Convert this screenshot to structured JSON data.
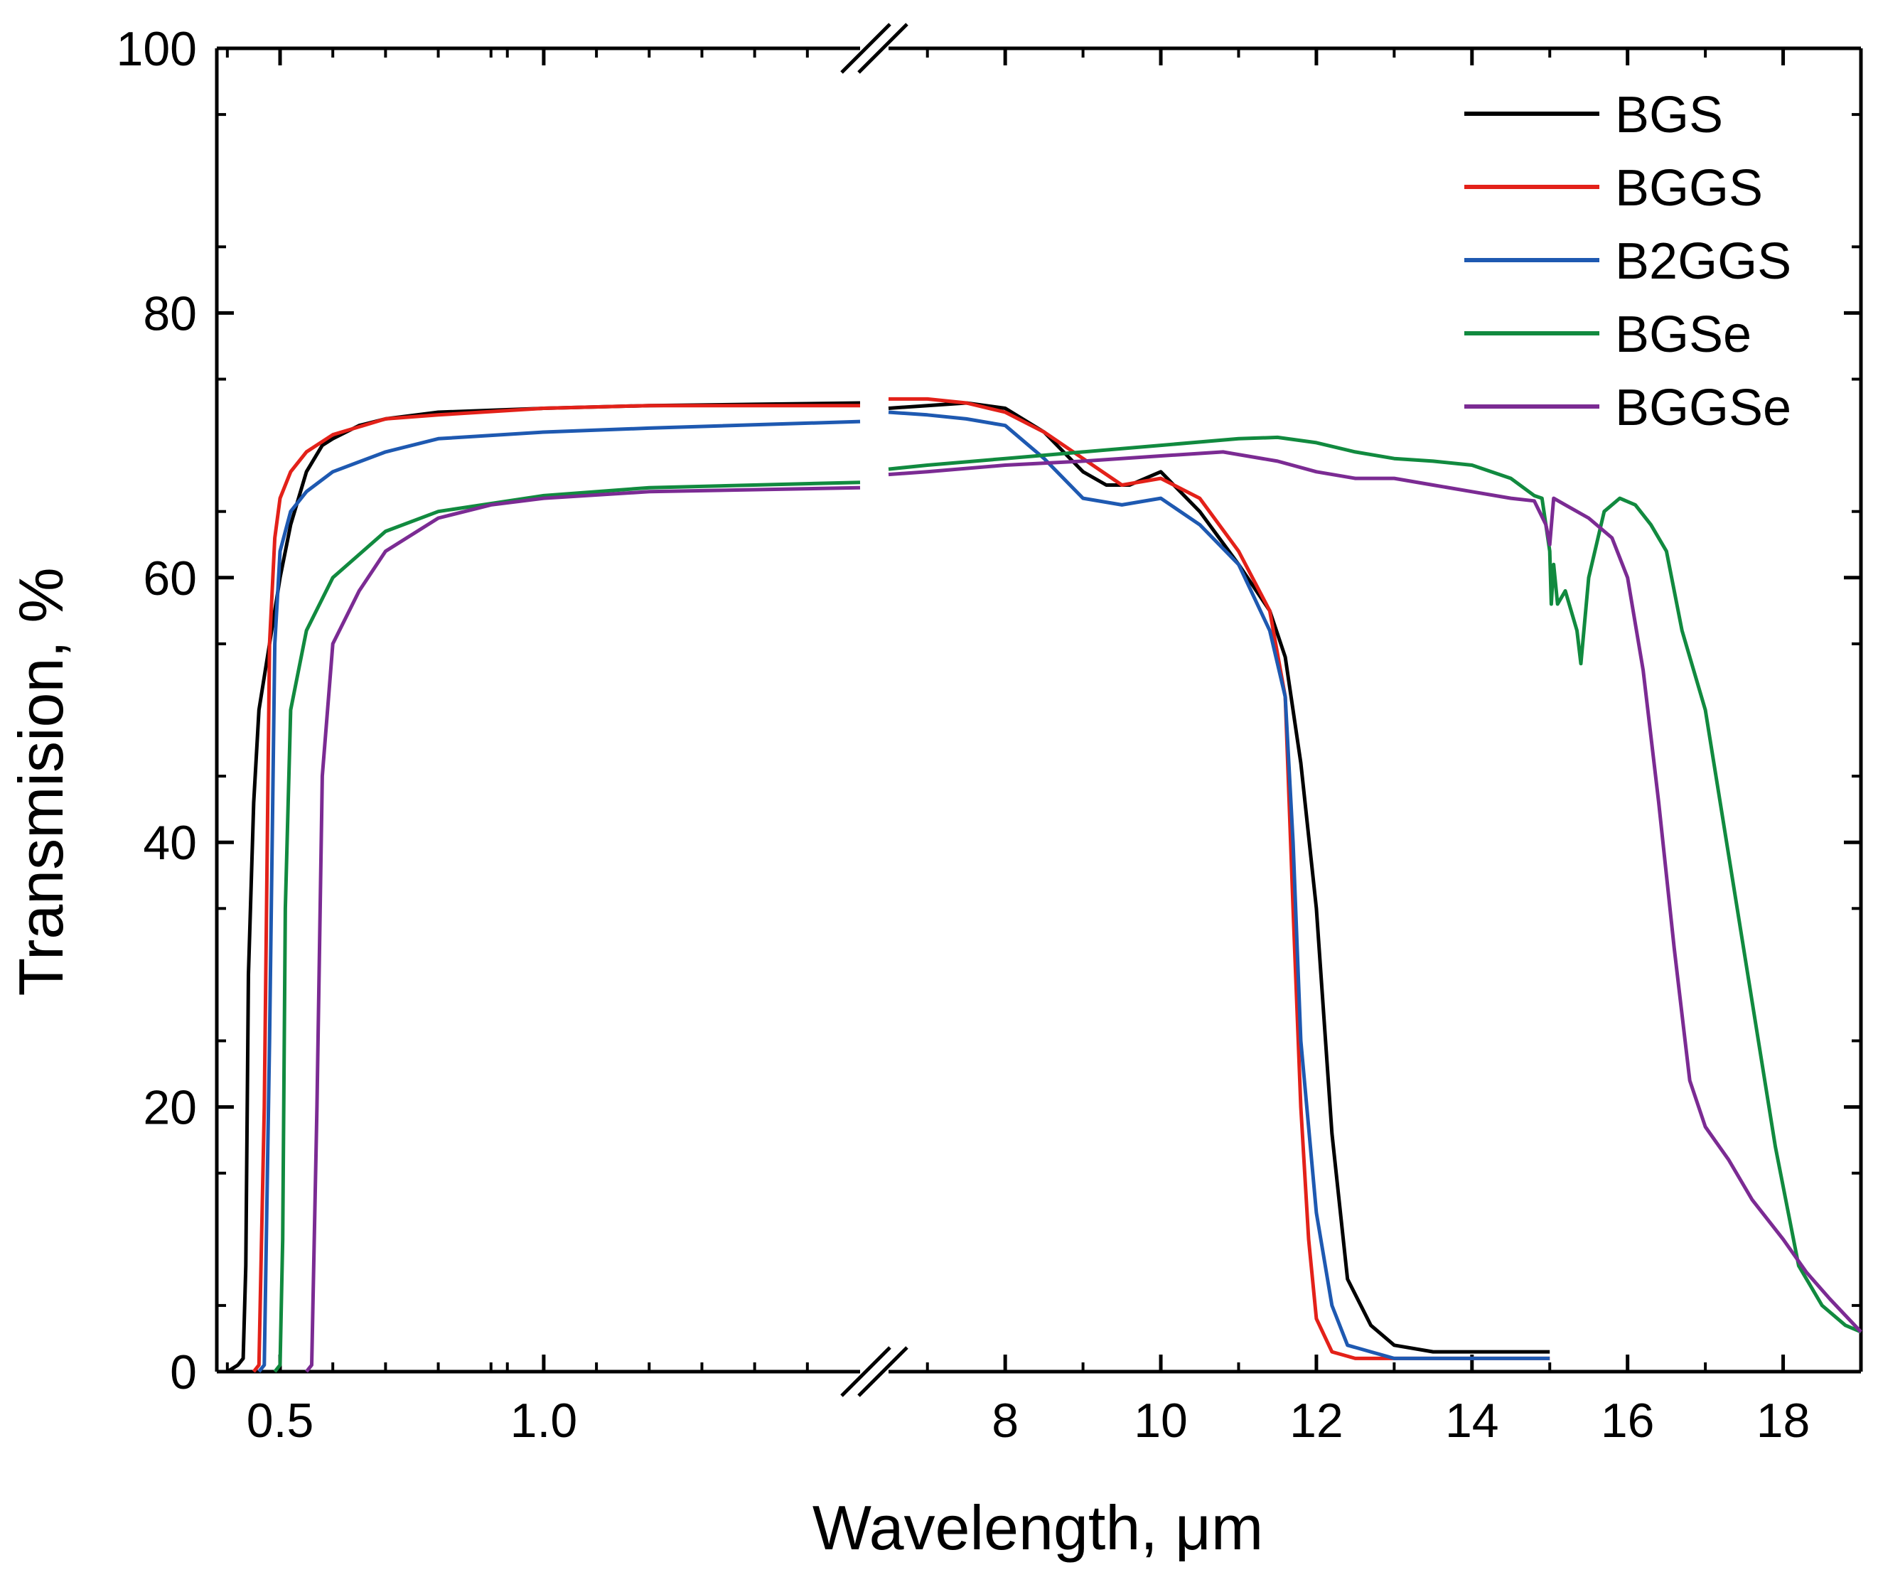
{
  "chart_data": {
    "type": "line",
    "xlabel": "Wavelength, μm",
    "ylabel": "Transmision, %",
    "ylim": [
      0,
      100
    ],
    "yticks": [
      0,
      20,
      40,
      60,
      80,
      100
    ],
    "x_axis_break": true,
    "x_segments": [
      {
        "range": [
          0.38,
          1.6
        ],
        "ticks": [
          0.5,
          1.0
        ],
        "tick_labels": [
          "0.5",
          "1.0"
        ]
      },
      {
        "range": [
          6.5,
          19.0
        ],
        "ticks": [
          8,
          10,
          12,
          14,
          16,
          18
        ],
        "tick_labels": [
          "8",
          "10",
          "12",
          "14",
          "16",
          "18"
        ]
      }
    ],
    "legend_position": "top-right",
    "series": [
      {
        "name": "BGS",
        "color": "#000000",
        "points": [
          [
            0.4,
            0
          ],
          [
            0.42,
            0.5
          ],
          [
            0.43,
            1
          ],
          [
            0.435,
            8
          ],
          [
            0.44,
            30
          ],
          [
            0.45,
            43
          ],
          [
            0.46,
            50
          ],
          [
            0.48,
            55
          ],
          [
            0.5,
            60
          ],
          [
            0.52,
            64
          ],
          [
            0.55,
            68
          ],
          [
            0.58,
            70
          ],
          [
            0.6,
            70.5
          ],
          [
            0.65,
            71.5
          ],
          [
            0.7,
            72
          ],
          [
            0.8,
            72.5
          ],
          [
            1.0,
            72.8
          ],
          [
            1.2,
            73
          ],
          [
            1.4,
            73.1
          ],
          [
            1.6,
            73.2
          ],
          [
            6.5,
            72.8
          ],
          [
            7.0,
            73
          ],
          [
            7.5,
            73.2
          ],
          [
            8.0,
            72.8
          ],
          [
            8.5,
            71
          ],
          [
            9.0,
            68
          ],
          [
            9.3,
            67
          ],
          [
            9.6,
            67
          ],
          [
            10.0,
            68
          ],
          [
            10.5,
            65
          ],
          [
            11.0,
            61
          ],
          [
            11.4,
            57.5
          ],
          [
            11.6,
            54
          ],
          [
            11.8,
            46
          ],
          [
            12.0,
            35
          ],
          [
            12.2,
            18
          ],
          [
            12.4,
            7
          ],
          [
            12.7,
            3.5
          ],
          [
            13.0,
            2
          ],
          [
            13.5,
            1.5
          ],
          [
            14.0,
            1.5
          ],
          [
            15.0,
            1.5
          ]
        ]
      },
      {
        "name": "BGGS",
        "color": "#e32119",
        "points": [
          [
            0.45,
            0
          ],
          [
            0.46,
            0.5
          ],
          [
            0.47,
            20
          ],
          [
            0.48,
            55
          ],
          [
            0.49,
            63
          ],
          [
            0.5,
            66
          ],
          [
            0.52,
            68
          ],
          [
            0.55,
            69.5
          ],
          [
            0.6,
            70.8
          ],
          [
            0.7,
            72
          ],
          [
            0.8,
            72.3
          ],
          [
            1.0,
            72.8
          ],
          [
            1.2,
            73
          ],
          [
            1.6,
            73
          ],
          [
            6.5,
            73.5
          ],
          [
            7.0,
            73.5
          ],
          [
            7.5,
            73.2
          ],
          [
            8.0,
            72.5
          ],
          [
            8.5,
            71
          ],
          [
            9.0,
            69
          ],
          [
            9.5,
            67
          ],
          [
            10.0,
            67.5
          ],
          [
            10.5,
            66
          ],
          [
            11.0,
            62
          ],
          [
            11.4,
            57.5
          ],
          [
            11.6,
            51
          ],
          [
            11.7,
            35
          ],
          [
            11.8,
            20
          ],
          [
            11.9,
            10
          ],
          [
            12.0,
            4
          ],
          [
            12.2,
            1.5
          ],
          [
            12.5,
            1
          ],
          [
            13.0,
            1
          ],
          [
            14.0,
            1
          ],
          [
            15.0,
            1
          ]
        ]
      },
      {
        "name": "B2GGS",
        "color": "#1e59b1",
        "points": [
          [
            0.46,
            0
          ],
          [
            0.47,
            0.5
          ],
          [
            0.48,
            25
          ],
          [
            0.49,
            55
          ],
          [
            0.5,
            62
          ],
          [
            0.52,
            65
          ],
          [
            0.55,
            66.5
          ],
          [
            0.6,
            68
          ],
          [
            0.7,
            69.5
          ],
          [
            0.8,
            70.5
          ],
          [
            1.0,
            71
          ],
          [
            1.2,
            71.3
          ],
          [
            1.6,
            71.8
          ],
          [
            6.5,
            72.5
          ],
          [
            7.0,
            72.3
          ],
          [
            7.5,
            72
          ],
          [
            8.0,
            71.5
          ],
          [
            8.5,
            69
          ],
          [
            9.0,
            66
          ],
          [
            9.5,
            65.5
          ],
          [
            10.0,
            66
          ],
          [
            10.5,
            64
          ],
          [
            11.0,
            61
          ],
          [
            11.4,
            56
          ],
          [
            11.6,
            51
          ],
          [
            11.7,
            40
          ],
          [
            11.8,
            25
          ],
          [
            12.0,
            12
          ],
          [
            12.2,
            5
          ],
          [
            12.4,
            2
          ],
          [
            12.7,
            1.5
          ],
          [
            13.0,
            1
          ],
          [
            15.0,
            1
          ]
        ]
      },
      {
        "name": "BGSe",
        "color": "#118a3f",
        "points": [
          [
            0.49,
            0
          ],
          [
            0.5,
            0.5
          ],
          [
            0.505,
            10
          ],
          [
            0.51,
            35
          ],
          [
            0.52,
            50
          ],
          [
            0.55,
            56
          ],
          [
            0.6,
            60
          ],
          [
            0.7,
            63.5
          ],
          [
            0.8,
            65
          ],
          [
            1.0,
            66.2
          ],
          [
            1.2,
            66.8
          ],
          [
            1.6,
            67.2
          ],
          [
            6.5,
            68.2
          ],
          [
            7.0,
            68.5
          ],
          [
            8.0,
            69
          ],
          [
            9.0,
            69.5
          ],
          [
            10.0,
            70
          ],
          [
            11.0,
            70.5
          ],
          [
            11.5,
            70.6
          ],
          [
            12.0,
            70.2
          ],
          [
            12.5,
            69.5
          ],
          [
            13.0,
            69
          ],
          [
            13.5,
            68.8
          ],
          [
            14.0,
            68.5
          ],
          [
            14.5,
            67.5
          ],
          [
            14.8,
            66.2
          ],
          [
            14.9,
            66
          ],
          [
            15.0,
            62
          ],
          [
            15.02,
            58
          ],
          [
            15.05,
            61
          ],
          [
            15.1,
            58
          ],
          [
            15.2,
            59
          ],
          [
            15.35,
            56
          ],
          [
            15.4,
            53.5
          ],
          [
            15.5,
            60
          ],
          [
            15.7,
            65
          ],
          [
            15.9,
            66
          ],
          [
            16.1,
            65.5
          ],
          [
            16.3,
            64
          ],
          [
            16.5,
            62
          ],
          [
            16.7,
            56
          ],
          [
            17.0,
            50
          ],
          [
            17.3,
            39
          ],
          [
            17.6,
            28
          ],
          [
            17.9,
            17
          ],
          [
            18.2,
            8
          ],
          [
            18.5,
            5
          ],
          [
            18.8,
            3.5
          ],
          [
            19.0,
            3
          ]
        ]
      },
      {
        "name": "BGGSe",
        "color": "#7b2b93",
        "points": [
          [
            0.55,
            0
          ],
          [
            0.56,
            0.5
          ],
          [
            0.57,
            20
          ],
          [
            0.58,
            45
          ],
          [
            0.6,
            55
          ],
          [
            0.65,
            59
          ],
          [
            0.7,
            62
          ],
          [
            0.8,
            64.5
          ],
          [
            0.9,
            65.5
          ],
          [
            1.0,
            66
          ],
          [
            1.2,
            66.5
          ],
          [
            1.6,
            66.8
          ],
          [
            6.5,
            67.8
          ],
          [
            7.0,
            68
          ],
          [
            8.0,
            68.5
          ],
          [
            9.0,
            68.8
          ],
          [
            10.0,
            69.2
          ],
          [
            10.8,
            69.5
          ],
          [
            11.5,
            68.8
          ],
          [
            12.0,
            68
          ],
          [
            12.5,
            67.5
          ],
          [
            13.0,
            67.5
          ],
          [
            13.5,
            67
          ],
          [
            14.0,
            66.5
          ],
          [
            14.5,
            66
          ],
          [
            14.8,
            65.8
          ],
          [
            14.95,
            64
          ],
          [
            15.0,
            62.5
          ],
          [
            15.05,
            66
          ],
          [
            15.2,
            65.5
          ],
          [
            15.5,
            64.5
          ],
          [
            15.8,
            63
          ],
          [
            16.0,
            60
          ],
          [
            16.2,
            53
          ],
          [
            16.4,
            43
          ],
          [
            16.6,
            32
          ],
          [
            16.8,
            22
          ],
          [
            17.0,
            18.5
          ],
          [
            17.3,
            16
          ],
          [
            17.6,
            13
          ],
          [
            18.0,
            10
          ],
          [
            18.3,
            7.5
          ],
          [
            18.6,
            5.5
          ],
          [
            19.0,
            3
          ]
        ]
      }
    ]
  }
}
